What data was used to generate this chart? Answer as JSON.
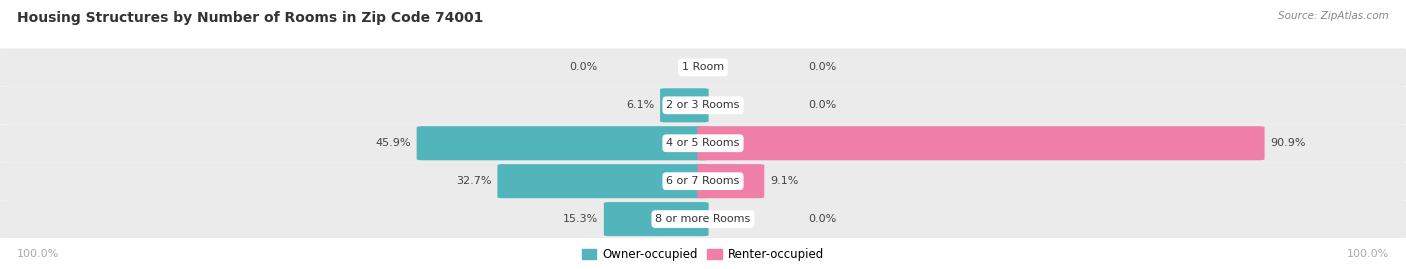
{
  "title": "Housing Structures by Number of Rooms in Zip Code 74001",
  "source": "Source: ZipAtlas.com",
  "categories": [
    "1 Room",
    "2 or 3 Rooms",
    "4 or 5 Rooms",
    "6 or 7 Rooms",
    "8 or more Rooms"
  ],
  "owner_values": [
    0.0,
    6.1,
    45.9,
    32.7,
    15.3
  ],
  "renter_values": [
    0.0,
    0.0,
    90.9,
    9.1,
    0.0
  ],
  "owner_color": "#52b5bc",
  "renter_color": "#f07fa8",
  "row_bg_color": "#ebebeb",
  "row_bg_color_alt": "#e0e0e0",
  "title_color": "#333333",
  "label_color": "#444444",
  "source_color": "#888888",
  "axis_label_color": "#aaaaaa",
  "figsize": [
    14.06,
    2.69
  ],
  "dpi": 100
}
